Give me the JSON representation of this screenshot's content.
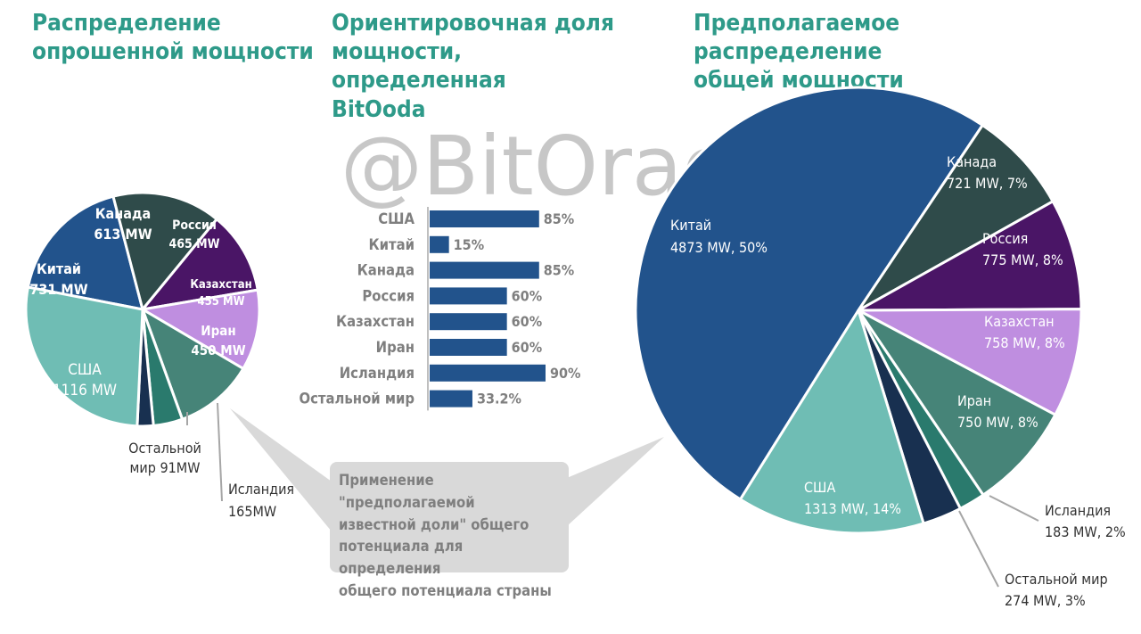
{
  "watermark": "@BitOracle",
  "titles": {
    "left": "Распределение\nопрошенной мощности",
    "middle": "Ориентировочная доля\nмощности, определенная\nBitOoda",
    "right": "Предполагаемое распределение\nобщей мощности"
  },
  "callout": "Применение \"предполагаемой\nизвестной доли\" общего\nпотенциала для определения\nобщего потенциала страны",
  "colors": {
    "title": "#2e9a89",
    "China": "#22538c",
    "Canada": "#2f4b4a",
    "Russia": "#4a1566",
    "Kazakhstan": "#bf8ee0",
    "Iran": "#468478",
    "Iceland": "#2a7a6d",
    "Rest": "#183050",
    "USA": "#6fbdb4",
    "bar": "#22538c",
    "callout": "#d9d9d9"
  },
  "chart_data": [
    {
      "type": "pie",
      "title": "Распределение опрошенной мощности",
      "unit": "MW",
      "slices": [
        {
          "key": "China",
          "label": "Китай",
          "value": 731,
          "label_lines": [
            "Китай",
            "731 MW"
          ]
        },
        {
          "key": "Canada",
          "label": "Канада",
          "value": 613,
          "label_lines": [
            "Канада",
            "613 MW"
          ]
        },
        {
          "key": "Russia",
          "label": "Россия",
          "value": 465,
          "label_lines": [
            "Россия",
            "465 MW"
          ]
        },
        {
          "key": "Kazakhstan",
          "label": "Казахстан",
          "value": 455,
          "label_lines": [
            "Казахстан",
            "455 MW"
          ]
        },
        {
          "key": "Iran",
          "label": "Иран",
          "value": 450,
          "label_lines": [
            "Иран",
            "450 MW"
          ]
        },
        {
          "key": "Iceland",
          "label": "Исландия",
          "value": 165,
          "label_lines": [
            "Исландия",
            "165MW"
          ]
        },
        {
          "key": "Rest",
          "label": "Остальной мир",
          "value": 91,
          "label_lines": [
            "Остальной",
            "мир 91MW"
          ]
        },
        {
          "key": "USA",
          "label": "США",
          "value": 1116,
          "label_lines": [
            "США",
            "1116 MW"
          ]
        }
      ]
    },
    {
      "type": "bar",
      "orientation": "horizontal",
      "title": "Ориентировочная доля мощности, определенная BitOoda",
      "categories": [
        "США",
        "Китай",
        "Канада",
        "Россия",
        "Казахстан",
        "Иран",
        "Исландия",
        "Остальной мир"
      ],
      "values": [
        85,
        15,
        85,
        60,
        60,
        60,
        90,
        33.2
      ],
      "value_labels": [
        "85%",
        "15%",
        "85%",
        "60%",
        "60%",
        "60%",
        "90%",
        "33.2%"
      ],
      "unit": "%"
    },
    {
      "type": "pie",
      "title": "Предполагаемое распределение общей мощности",
      "unit": "MW",
      "slices": [
        {
          "key": "China",
          "label": "Китай",
          "value": 4873,
          "percent": 50,
          "label_lines": [
            "Китай",
            "4873 MW, 50%"
          ]
        },
        {
          "key": "Canada",
          "label": "Канада",
          "value": 721,
          "percent": 7,
          "label_lines": [
            "Канада",
            "721 MW, 7%"
          ]
        },
        {
          "key": "Russia",
          "label": "Россия",
          "value": 775,
          "percent": 8,
          "label_lines": [
            "Россия",
            "775 MW, 8%"
          ]
        },
        {
          "key": "Kazakhstan",
          "label": "Казахстан",
          "value": 758,
          "percent": 8,
          "label_lines": [
            "Казахстан",
            "758 MW, 8%"
          ]
        },
        {
          "key": "Iran",
          "label": "Иран",
          "value": 750,
          "percent": 8,
          "label_lines": [
            "Иран",
            "750 MW, 8%"
          ]
        },
        {
          "key": "Iceland",
          "label": "Исландия",
          "value": 183,
          "percent": 2,
          "label_lines": [
            "Исландия",
            "183 MW, 2%"
          ]
        },
        {
          "key": "Rest",
          "label": "Остальной мир",
          "value": 274,
          "percent": 3,
          "label_lines": [
            "Остальной мир",
            "274 MW, 3%"
          ]
        },
        {
          "key": "USA",
          "label": "США",
          "value": 1313,
          "percent": 14,
          "label_lines": [
            "США",
            "1313 MW, 14%"
          ]
        }
      ]
    }
  ]
}
